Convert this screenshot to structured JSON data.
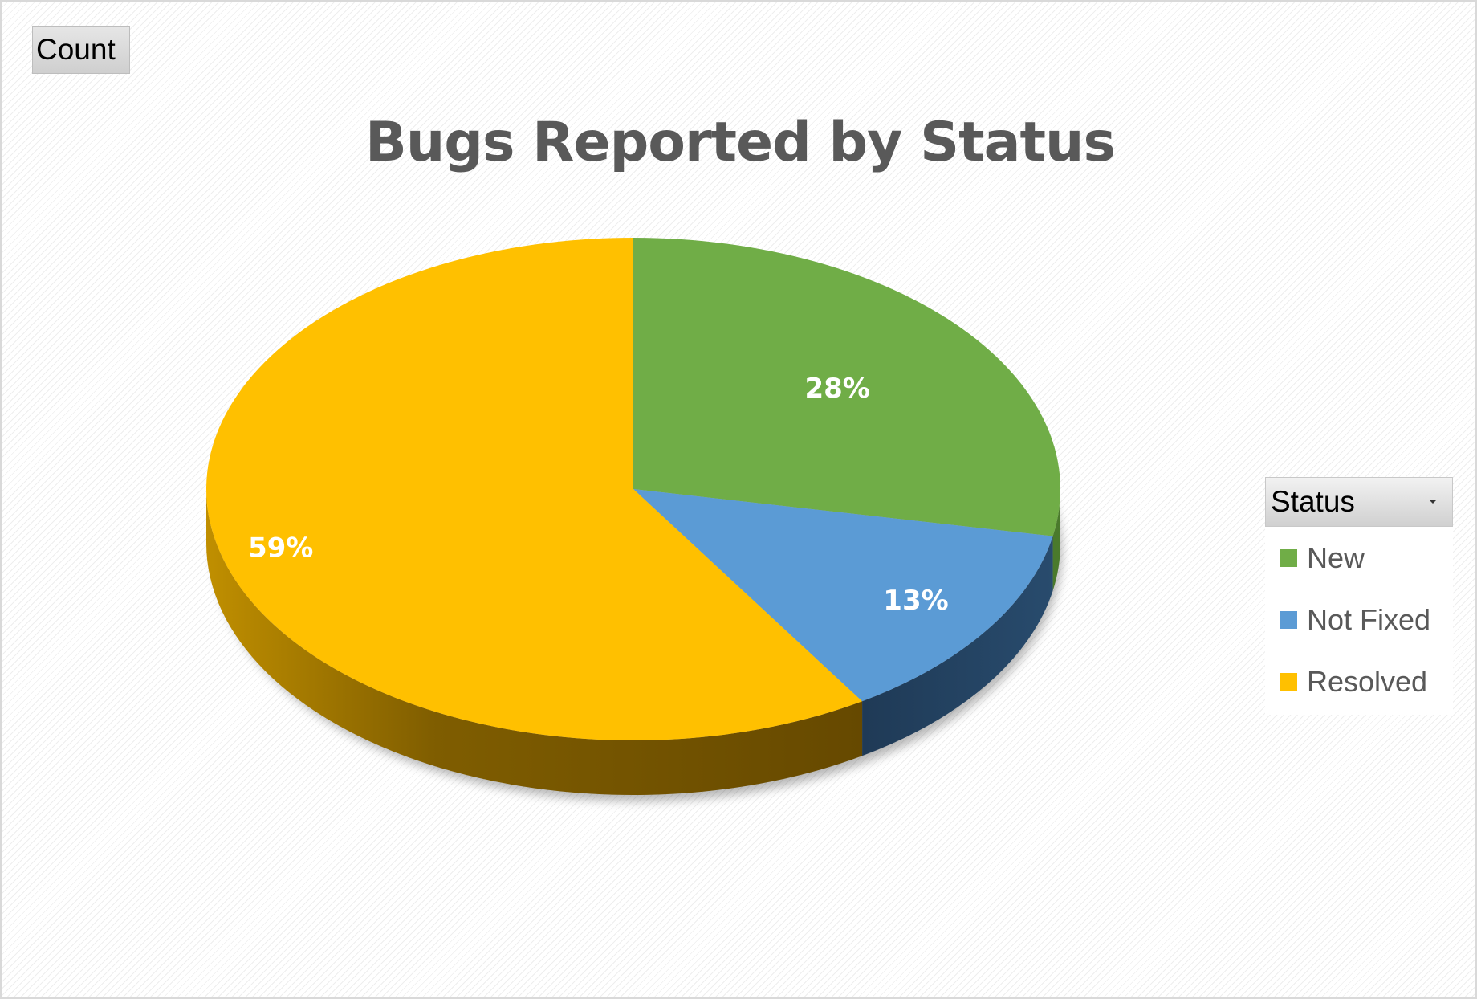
{
  "count_button": {
    "label": "Count"
  },
  "legend": {
    "title": "Status"
  },
  "colors": {
    "New": "#70ad47",
    "Not Fixed": "#5b9bd5",
    "Resolved": "#ffc000"
  },
  "chart_data": {
    "type": "pie",
    "title": "Bugs Reported by Status",
    "style": "3d",
    "legend_position": "right",
    "categories": [
      "New",
      "Not Fixed",
      "Resolved"
    ],
    "values": [
      28,
      13,
      59
    ],
    "labels": [
      "28%",
      "13%",
      "59%"
    ]
  }
}
